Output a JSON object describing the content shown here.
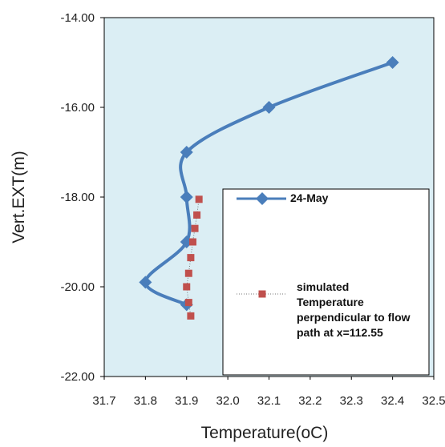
{
  "chart_data": {
    "type": "line",
    "x_label": "Temperature(oC)",
    "y_label": "Vert.EXT(m)",
    "xlim": [
      31.7,
      32.5
    ],
    "xticks": [
      31.7,
      31.8,
      31.9,
      {
        "value": 32.0,
        "label": "32.0"
      },
      32.1,
      32.2,
      32.3,
      32.4,
      32.5
    ],
    "ylim": [
      -22,
      -14
    ],
    "yticks": [
      {
        "value": -22,
        "label": "-22.00"
      },
      {
        "value": -20,
        "label": "-20.00"
      },
      {
        "value": -18,
        "label": "-18.00"
      },
      {
        "value": -16,
        "label": "-16.00"
      },
      {
        "value": -14,
        "label": "-14.00"
      }
    ],
    "background": "#dbeef4",
    "series": [
      {
        "name": "24-May",
        "color": "#4a7ebb",
        "marker": "diamond",
        "smooth": true,
        "x": [
          32.4,
          32.1,
          31.9,
          31.9,
          31.9,
          31.8,
          31.9
        ],
        "values": [
          -15,
          -16,
          -17,
          -18,
          -19,
          -19.9,
          -20.4
        ]
      },
      {
        "name": "simulated Temperature perpendicular to flow path at x=112.55",
        "color": "#c0504d",
        "marker": "square",
        "smooth": false,
        "x": [
          31.93,
          31.925,
          31.92,
          31.915,
          31.91,
          31.905,
          31.9,
          31.905,
          31.91
        ],
        "values": [
          -18.05,
          -18.4,
          -18.7,
          -19.0,
          -19.35,
          -19.7,
          -20.0,
          -20.35,
          -20.65
        ]
      }
    ]
  }
}
